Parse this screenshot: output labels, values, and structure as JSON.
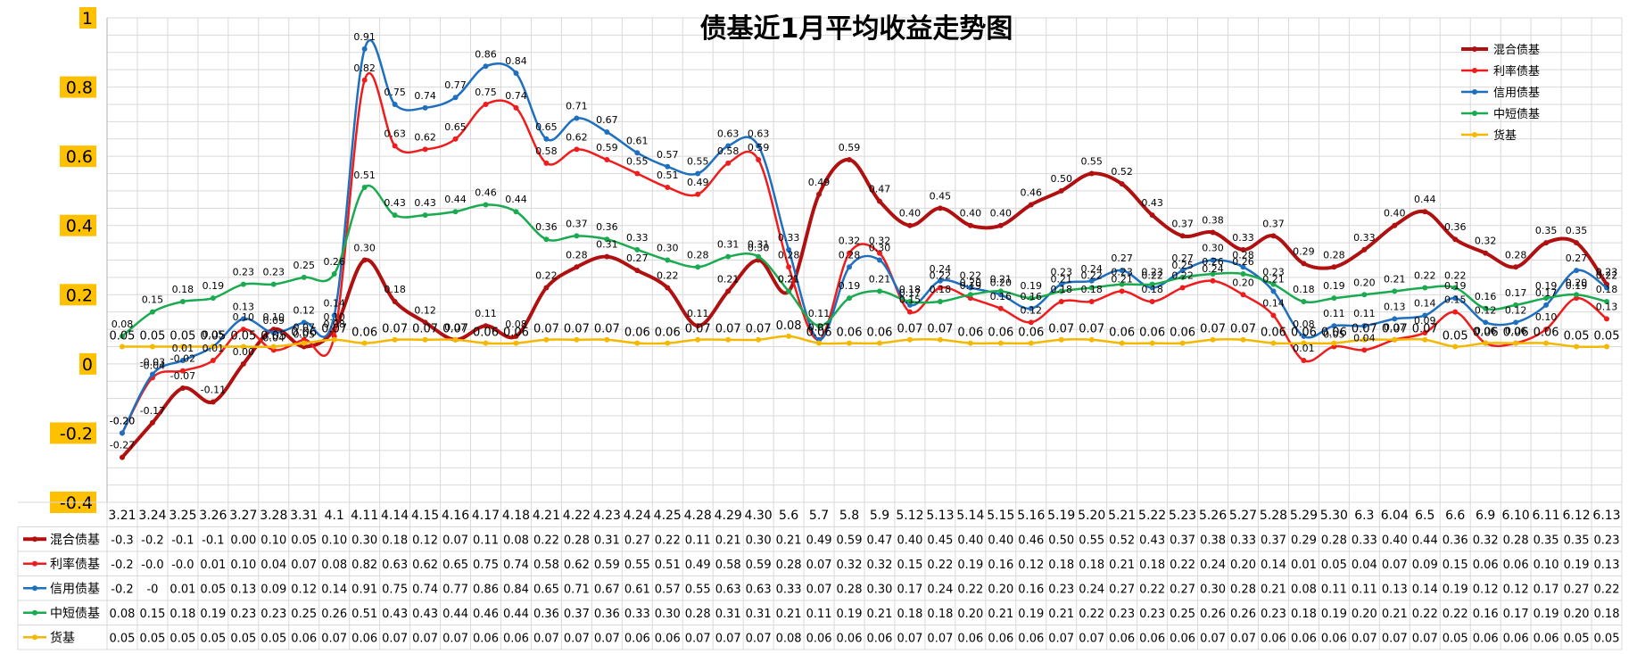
{
  "chart_data": {
    "type": "line",
    "title": "债基近1月平均收益走势图",
    "ylim": [
      -0.4,
      1
    ],
    "y_ticks": [
      "1",
      "0.8",
      "0.6",
      "0.4",
      "0.2",
      "0",
      "-0.2",
      "-0.4"
    ],
    "grid": true,
    "legend_position": "top-right",
    "categories": [
      "3.21",
      "3.24",
      "3.25",
      "3.26",
      "3.27",
      "3.28",
      "3.31",
      "4.1",
      "4.11",
      "4.14",
      "4.15",
      "4.16",
      "4.17",
      "4.18",
      "4.21",
      "4.22",
      "4.23",
      "4.24",
      "4.25",
      "4.28",
      "4.29",
      "4.30",
      "5.6",
      "5.7",
      "5.8",
      "5.9",
      "5.12",
      "5.13",
      "5.14",
      "5.15",
      "5.16",
      "5.19",
      "5.20",
      "5.21",
      "5.22",
      "5.23",
      "5.26",
      "5.27",
      "5.28",
      "5.29",
      "5.30",
      "6.3",
      "6.04",
      "6.5",
      "6.6",
      "6.9",
      "6.10",
      "6.11",
      "6.12",
      "6.13"
    ],
    "series": [
      {
        "name": "混合债基",
        "color": "#b01010",
        "line_width": 4,
        "values": [
          -0.27,
          -0.17,
          -0.07,
          -0.11,
          0.0,
          0.1,
          0.05,
          0.1,
          0.3,
          0.18,
          0.12,
          0.07,
          0.11,
          0.08,
          0.22,
          0.28,
          0.31,
          0.27,
          0.22,
          0.11,
          0.21,
          0.3,
          0.21,
          0.49,
          0.59,
          0.47,
          0.4,
          0.45,
          0.4,
          0.4,
          0.46,
          0.5,
          0.55,
          0.52,
          0.43,
          0.37,
          0.38,
          0.33,
          0.37,
          0.29,
          0.28,
          0.33,
          0.4,
          0.44,
          0.36,
          0.32,
          0.28,
          0.35,
          0.35,
          0.23
        ],
        "table_row": [
          "-0.3",
          "-0.2",
          "-0.1",
          "-0.1",
          "0.00",
          "0.10",
          "0.05",
          "0.10",
          "0.30",
          "0.18",
          "0.12",
          "0.07",
          "0.11",
          "0.08",
          "0.22",
          "0.28",
          "0.31",
          "0.27",
          "0.22",
          "0.11",
          "0.21",
          "0.30",
          "0.21",
          "0.49",
          "0.59",
          "0.47",
          "0.40",
          "0.45",
          "0.40",
          "0.40",
          "0.46",
          "0.50",
          "0.55",
          "0.52",
          "0.43",
          "0.37",
          "0.38",
          "0.33",
          "0.37",
          "0.29",
          "0.28",
          "0.33",
          "0.40",
          "0.44",
          "0.36",
          "0.32",
          "0.28",
          "0.35",
          "0.35",
          "0.23"
        ],
        "point_labels": [
          "-0.27",
          "-0.17",
          "-0.07",
          "-0.11",
          "0.00",
          "0.10",
          "0.05",
          "0.10",
          "0.30",
          "0.18",
          "0.12",
          "0.07",
          "0.11",
          "0.08",
          "0.22",
          "0.28",
          "0.31",
          "0.27",
          "0.22",
          "0.11",
          "0.21",
          "0.30",
          "0.21",
          "0.49",
          "0.59",
          "0.47",
          "0.40",
          "0.45",
          "0.40",
          "0.40",
          "0.46",
          "0.50",
          "0.55",
          "0.52",
          "0.43",
          "0.37",
          "0.38",
          "0.33",
          "0.37",
          "0.29",
          "0.28",
          "0.33",
          "0.40",
          "0.44",
          "0.36",
          "0.32",
          "0.28",
          "0.35",
          "0.35",
          "0.23"
        ]
      },
      {
        "name": "利率债基",
        "color": "#ee1c1c",
        "line_width": 2.5,
        "values": [
          -0.2,
          -0.04,
          -0.02,
          0.01,
          0.1,
          0.04,
          0.07,
          0.08,
          0.82,
          0.63,
          0.62,
          0.65,
          0.75,
          0.74,
          0.58,
          0.62,
          0.59,
          0.55,
          0.51,
          0.49,
          0.58,
          0.59,
          0.28,
          0.07,
          0.32,
          0.32,
          0.15,
          0.22,
          0.19,
          0.16,
          0.12,
          0.18,
          0.18,
          0.21,
          0.18,
          0.22,
          0.24,
          0.2,
          0.14,
          0.01,
          0.05,
          0.04,
          0.07,
          0.09,
          0.15,
          0.06,
          0.06,
          0.1,
          0.19,
          0.13
        ],
        "table_row": [
          "-0.2",
          "-0.0",
          "-0.0",
          "0.01",
          "0.10",
          "0.04",
          "0.07",
          "0.08",
          "0.82",
          "0.63",
          "0.62",
          "0.65",
          "0.75",
          "0.74",
          "0.58",
          "0.62",
          "0.59",
          "0.55",
          "0.51",
          "0.49",
          "0.58",
          "0.59",
          "0.28",
          "0.07",
          "0.32",
          "0.32",
          "0.15",
          "0.22",
          "0.19",
          "0.16",
          "0.12",
          "0.18",
          "0.18",
          "0.21",
          "0.18",
          "0.22",
          "0.24",
          "0.20",
          "0.14",
          "0.01",
          "0.05",
          "0.04",
          "0.07",
          "0.09",
          "0.15",
          "0.06",
          "0.06",
          "0.10",
          "0.19",
          "0.13"
        ],
        "point_labels": [
          "-0.20",
          "-0.04",
          "-0.02",
          "0.01",
          "0.10",
          "0.04",
          "0.07",
          "0.08",
          "0.82",
          "0.63",
          "0.62",
          "0.65",
          "0.75",
          "0.74",
          "0.58",
          "0.62",
          "0.59",
          "0.55",
          "0.51",
          "0.49",
          "0.58",
          "0.59",
          "0.28",
          "0.07",
          "0.32",
          "0.32",
          "0.15",
          "0.22",
          "0.19",
          "0.16",
          "0.12",
          "0.18",
          "0.18",
          "0.21",
          "0.18",
          "0.22",
          "0.24",
          "0.20",
          "0.14",
          "0.01",
          "0.05",
          "0.04",
          "0.07",
          "0.09",
          "0.15",
          "0.06",
          "0.06",
          "0.10",
          "0.19",
          "0.13"
        ]
      },
      {
        "name": "信用债基",
        "color": "#1f6fbf",
        "line_width": 2.5,
        "values": [
          -0.2,
          -0.03,
          0.01,
          0.05,
          0.13,
          0.09,
          0.12,
          0.14,
          0.91,
          0.75,
          0.74,
          0.77,
          0.86,
          0.84,
          0.65,
          0.71,
          0.67,
          0.61,
          0.57,
          0.55,
          0.63,
          0.63,
          0.33,
          0.07,
          0.28,
          0.3,
          0.17,
          0.24,
          0.22,
          0.2,
          0.16,
          0.23,
          0.24,
          0.27,
          0.22,
          0.27,
          0.3,
          0.28,
          0.21,
          0.08,
          0.11,
          0.11,
          0.13,
          0.14,
          0.19,
          0.12,
          0.12,
          0.17,
          0.27,
          0.22
        ],
        "table_row": [
          "-0.2",
          "-0",
          "0.01",
          "0.05",
          "0.13",
          "0.09",
          "0.12",
          "0.14",
          "0.91",
          "0.75",
          "0.74",
          "0.77",
          "0.86",
          "0.84",
          "0.65",
          "0.71",
          "0.67",
          "0.61",
          "0.57",
          "0.55",
          "0.63",
          "0.63",
          "0.33",
          "0.07",
          "0.28",
          "0.30",
          "0.17",
          "0.24",
          "0.22",
          "0.20",
          "0.16",
          "0.23",
          "0.24",
          "0.27",
          "0.22",
          "0.27",
          "0.30",
          "0.28",
          "0.21",
          "0.08",
          "0.11",
          "0.11",
          "0.13",
          "0.14",
          "0.19",
          "0.12",
          "0.12",
          "0.17",
          "0.27",
          "0.22"
        ],
        "point_labels": [
          "-0.20",
          "-0.03",
          "0.01",
          "0.05",
          "0.13",
          "0.09",
          "0.12",
          "0.14",
          "0.91",
          "0.75",
          "0.74",
          "0.77",
          "0.86",
          "0.84",
          "0.65",
          "0.71",
          "0.67",
          "0.61",
          "0.57",
          "0.55",
          "0.63",
          "0.63",
          "0.33",
          "0.07",
          "0.28",
          "0.30",
          "0.17",
          "0.24",
          "0.22",
          "0.20",
          "0.16",
          "0.23",
          "0.24",
          "0.27",
          "0.22",
          "0.27",
          "0.30",
          "0.28",
          "0.21",
          "0.08",
          "0.11",
          "0.11",
          "0.13",
          "0.14",
          "0.19",
          "0.12",
          "0.12",
          "0.17",
          "0.27",
          "0.22"
        ]
      },
      {
        "name": "中短债基",
        "color": "#1aaa50",
        "line_width": 2.5,
        "values": [
          0.08,
          0.15,
          0.18,
          0.19,
          0.23,
          0.23,
          0.25,
          0.26,
          0.51,
          0.43,
          0.43,
          0.44,
          0.46,
          0.44,
          0.36,
          0.37,
          0.36,
          0.33,
          0.3,
          0.28,
          0.31,
          0.31,
          0.21,
          0.11,
          0.19,
          0.21,
          0.18,
          0.18,
          0.2,
          0.21,
          0.19,
          0.21,
          0.22,
          0.23,
          0.23,
          0.25,
          0.26,
          0.26,
          0.23,
          0.18,
          0.19,
          0.2,
          0.21,
          0.22,
          0.22,
          0.16,
          0.17,
          0.19,
          0.2,
          0.18
        ],
        "table_row": [
          "0.08",
          "0.15",
          "0.18",
          "0.19",
          "0.23",
          "0.23",
          "0.25",
          "0.26",
          "0.51",
          "0.43",
          "0.43",
          "0.44",
          "0.46",
          "0.44",
          "0.36",
          "0.37",
          "0.36",
          "0.33",
          "0.30",
          "0.28",
          "0.31",
          "0.31",
          "0.21",
          "0.11",
          "0.19",
          "0.21",
          "0.18",
          "0.18",
          "0.20",
          "0.21",
          "0.19",
          "0.21",
          "0.22",
          "0.23",
          "0.23",
          "0.25",
          "0.26",
          "0.26",
          "0.23",
          "0.18",
          "0.19",
          "0.20",
          "0.21",
          "0.22",
          "0.22",
          "0.16",
          "0.17",
          "0.19",
          "0.20",
          "0.18"
        ],
        "point_labels": [
          "0.08",
          "0.15",
          "0.18",
          "0.19",
          "0.23",
          "0.23",
          "0.25",
          "0.26",
          "0.51",
          "0.43",
          "0.43",
          "0.44",
          "0.46",
          "0.44",
          "0.36",
          "0.37",
          "0.36",
          "0.33",
          "0.30",
          "0.28",
          "0.31",
          "0.31",
          "0.21",
          "0.11",
          "0.19",
          "0.21",
          "0.18",
          "0.18",
          "0.20",
          "0.21",
          "0.19",
          "0.21",
          "0.22",
          "0.23",
          "0.23",
          "0.25",
          "0.26",
          "0.26",
          "0.23",
          "0.18",
          "0.19",
          "0.20",
          "0.21",
          "0.22",
          "0.22",
          "0.16",
          "0.17",
          "0.19",
          "0.20",
          "0.18"
        ]
      },
      {
        "name": "货基",
        "color": "#f5b800",
        "line_width": 2.5,
        "values": [
          0.05,
          0.05,
          0.05,
          0.05,
          0.05,
          0.05,
          0.06,
          0.07,
          0.06,
          0.07,
          0.07,
          0.07,
          0.06,
          0.06,
          0.07,
          0.07,
          0.07,
          0.06,
          0.06,
          0.07,
          0.07,
          0.07,
          0.08,
          0.06,
          0.06,
          0.06,
          0.07,
          0.07,
          0.06,
          0.06,
          0.06,
          0.07,
          0.07,
          0.06,
          0.06,
          0.06,
          0.07,
          0.07,
          0.06,
          0.06,
          0.06,
          0.07,
          0.07,
          0.07,
          0.05,
          0.06,
          0.06,
          0.06,
          0.05,
          0.05
        ],
        "table_row": [
          "0.05",
          "0.05",
          "0.05",
          "0.05",
          "0.05",
          "0.05",
          "0.06",
          "0.07",
          "0.06",
          "0.07",
          "0.07",
          "0.07",
          "0.06",
          "0.06",
          "0.07",
          "0.07",
          "0.07",
          "0.06",
          "0.06",
          "0.07",
          "0.07",
          "0.07",
          "0.08",
          "0.06",
          "0.06",
          "0.06",
          "0.07",
          "0.07",
          "0.06",
          "0.06",
          "0.06",
          "0.07",
          "0.07",
          "0.06",
          "0.06",
          "0.06",
          "0.07",
          "0.07",
          "0.06",
          "0.06",
          "0.06",
          "0.07",
          "0.07",
          "0.07",
          "0.05",
          "0.06",
          "0.06",
          "0.06",
          "0.05",
          "0.05"
        ],
        "point_labels": [
          "0.05",
          "0.05",
          "0.05",
          "0.05",
          "0.05",
          "0.05",
          "0.06",
          "0.07",
          "0.06",
          "0.07",
          "0.07",
          "0.07",
          "0.06",
          "0.06",
          "0.07",
          "0.07",
          "0.07",
          "0.06",
          "0.06",
          "0.07",
          "0.07",
          "0.07",
          "0.08",
          "0.06",
          "0.06",
          "0.06",
          "0.07",
          "0.07",
          "0.06",
          "0.06",
          "0.06",
          "0.07",
          "0.07",
          "0.06",
          "0.06",
          "0.06",
          "0.07",
          "0.07",
          "0.06",
          "0.06",
          "0.06",
          "0.07",
          "0.07",
          "0.07",
          "0.05",
          "0.06",
          "0.06",
          "0.06",
          "0.05",
          "0.05"
        ]
      }
    ]
  },
  "colors": {
    "grid": "#d9d9d9",
    "axis": "#bfbfbf",
    "tick_highlight": "#ffc000",
    "text": "#000000"
  }
}
